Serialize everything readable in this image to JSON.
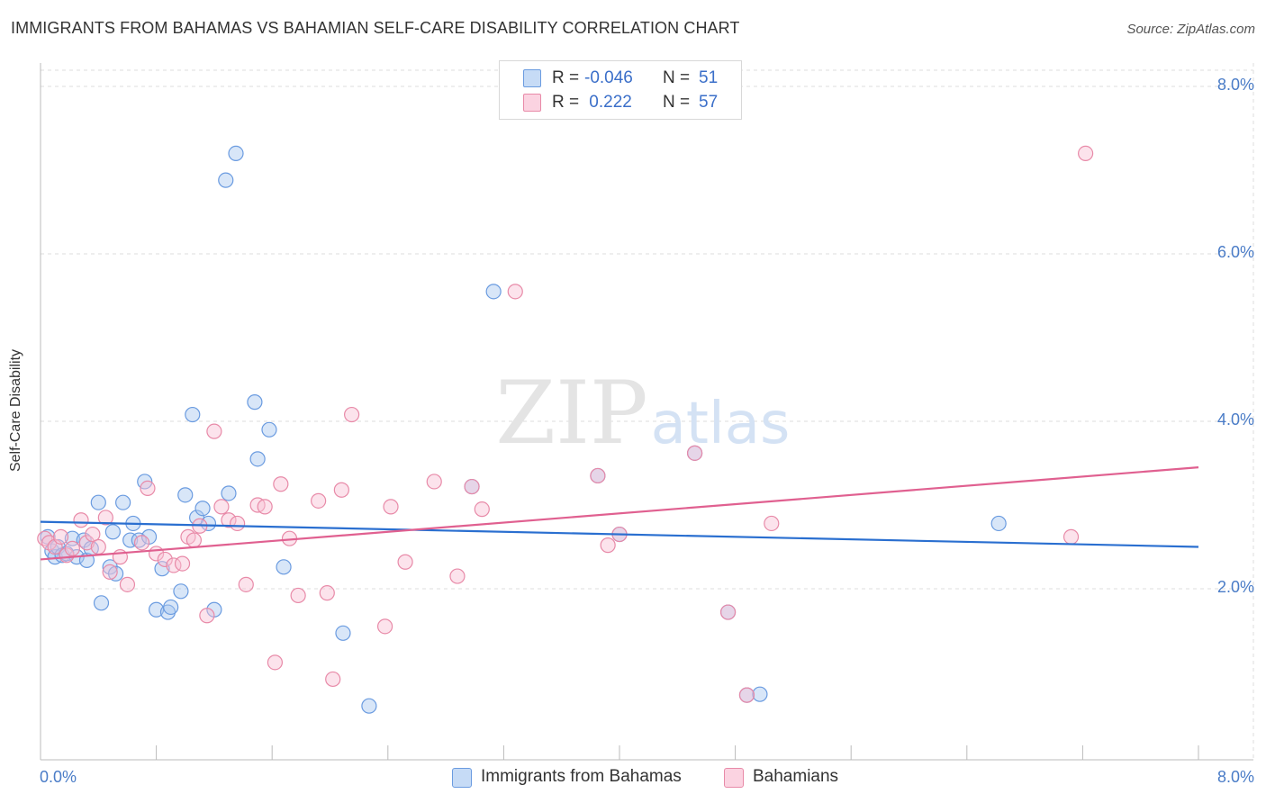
{
  "title": "IMMIGRANTS FROM BAHAMAS VS BAHAMIAN SELF-CARE DISABILITY CORRELATION CHART",
  "source": "Source: ZipAtlas.com",
  "watermark": {
    "zip": "ZIP",
    "atlas": "atlas"
  },
  "legend": {
    "rows": [
      {
        "r_label": "R =",
        "r_value": "-0.046",
        "n_label": "N =",
        "n_value": "51",
        "color": "#a8c8f0",
        "stroke": "#6a9be0"
      },
      {
        "r_label": "R =",
        "r_value": " 0.222",
        "n_label": "N =",
        "n_value": "57",
        "color": "#f8c0d4",
        "stroke": "#e88aa8"
      }
    ]
  },
  "bottom_legend": {
    "series1": "Immigrants from Bahamas",
    "series2": "Bahamians"
  },
  "chart_data": {
    "type": "scatter",
    "title": "IMMIGRANTS FROM BAHAMAS VS BAHAMIAN SELF-CARE DISABILITY CORRELATION CHART",
    "xlabel": "",
    "ylabel": "Self-Care Disability",
    "xlim": [
      0,
      8.4
    ],
    "ylim": [
      0,
      8.2
    ],
    "x_tick_labels": [
      "0.0%",
      "8.0%"
    ],
    "y_tick_labels": [
      "2.0%",
      "4.0%",
      "6.0%",
      "8.0%"
    ],
    "y_ticks": [
      2.0,
      4.0,
      6.0,
      8.0
    ],
    "grid": "horizontal dashed",
    "legend_position": "top-center",
    "series": [
      {
        "name": "Immigrants from Bahamas",
        "color": "#a8c8f0",
        "edge": "#6a9be0",
        "trend": {
          "x": [
            0.0,
            8.0
          ],
          "y": [
            2.8,
            2.5
          ],
          "color": "#2a6fd0"
        },
        "points": [
          [
            0.05,
            2.62
          ],
          [
            0.08,
            2.45
          ],
          [
            0.1,
            2.38
          ],
          [
            0.12,
            2.5
          ],
          [
            0.15,
            2.4
          ],
          [
            0.18,
            2.42
          ],
          [
            0.22,
            2.6
          ],
          [
            0.25,
            2.38
          ],
          [
            0.3,
            2.58
          ],
          [
            0.32,
            2.34
          ],
          [
            0.35,
            2.48
          ],
          [
            0.4,
            3.03
          ],
          [
            0.42,
            1.83
          ],
          [
            0.48,
            2.26
          ],
          [
            0.5,
            2.68
          ],
          [
            0.52,
            2.18
          ],
          [
            0.57,
            3.03
          ],
          [
            0.62,
            2.58
          ],
          [
            0.64,
            2.78
          ],
          [
            0.68,
            2.58
          ],
          [
            0.72,
            3.28
          ],
          [
            0.75,
            2.62
          ],
          [
            0.8,
            1.75
          ],
          [
            0.84,
            2.24
          ],
          [
            0.88,
            1.72
          ],
          [
            0.9,
            1.78
          ],
          [
            0.97,
            1.97
          ],
          [
            1.0,
            3.12
          ],
          [
            1.05,
            4.08
          ],
          [
            1.08,
            2.85
          ],
          [
            1.12,
            2.96
          ],
          [
            1.16,
            2.78
          ],
          [
            1.2,
            1.75
          ],
          [
            1.28,
            6.88
          ],
          [
            1.3,
            3.14
          ],
          [
            1.35,
            7.2
          ],
          [
            1.48,
            4.23
          ],
          [
            1.5,
            3.55
          ],
          [
            1.58,
            3.9
          ],
          [
            1.68,
            2.26
          ],
          [
            2.09,
            1.47
          ],
          [
            2.27,
            0.6
          ],
          [
            2.98,
            3.22
          ],
          [
            3.13,
            5.55
          ],
          [
            3.85,
            3.35
          ],
          [
            4.0,
            2.65
          ],
          [
            4.52,
            3.62
          ],
          [
            4.75,
            1.72
          ],
          [
            4.88,
            0.73
          ],
          [
            4.97,
            0.74
          ],
          [
            6.62,
            2.78
          ]
        ]
      },
      {
        "name": "Bahamians",
        "color": "#f8c0d4",
        "edge": "#e88aa8",
        "trend": {
          "x": [
            0.0,
            8.0
          ],
          "y": [
            2.35,
            3.45
          ],
          "color": "#e06090"
        },
        "points": [
          [
            0.03,
            2.6
          ],
          [
            0.06,
            2.55
          ],
          [
            0.1,
            2.5
          ],
          [
            0.14,
            2.62
          ],
          [
            0.18,
            2.4
          ],
          [
            0.22,
            2.48
          ],
          [
            0.28,
            2.82
          ],
          [
            0.32,
            2.55
          ],
          [
            0.36,
            2.65
          ],
          [
            0.4,
            2.5
          ],
          [
            0.45,
            2.85
          ],
          [
            0.48,
            2.2
          ],
          [
            0.55,
            2.38
          ],
          [
            0.6,
            2.05
          ],
          [
            0.7,
            2.55
          ],
          [
            0.74,
            3.2
          ],
          [
            0.8,
            2.42
          ],
          [
            0.86,
            2.35
          ],
          [
            0.92,
            2.28
          ],
          [
            0.98,
            2.3
          ],
          [
            1.02,
            2.62
          ],
          [
            1.06,
            2.58
          ],
          [
            1.1,
            2.75
          ],
          [
            1.15,
            1.68
          ],
          [
            1.2,
            3.88
          ],
          [
            1.25,
            2.98
          ],
          [
            1.3,
            2.82
          ],
          [
            1.36,
            2.78
          ],
          [
            1.42,
            2.05
          ],
          [
            1.5,
            3.0
          ],
          [
            1.55,
            2.98
          ],
          [
            1.62,
            1.12
          ],
          [
            1.66,
            3.25
          ],
          [
            1.72,
            2.6
          ],
          [
            1.78,
            1.92
          ],
          [
            1.92,
            3.05
          ],
          [
            1.98,
            1.95
          ],
          [
            2.02,
            0.92
          ],
          [
            2.08,
            3.18
          ],
          [
            2.15,
            4.08
          ],
          [
            2.38,
            1.55
          ],
          [
            2.42,
            2.98
          ],
          [
            2.52,
            2.32
          ],
          [
            2.72,
            3.28
          ],
          [
            2.88,
            2.15
          ],
          [
            2.98,
            3.22
          ],
          [
            3.05,
            2.95
          ],
          [
            3.28,
            5.55
          ],
          [
            3.85,
            3.35
          ],
          [
            3.92,
            2.52
          ],
          [
            4.0,
            2.65
          ],
          [
            4.52,
            3.62
          ],
          [
            4.75,
            1.72
          ],
          [
            4.88,
            0.73
          ],
          [
            5.05,
            2.78
          ],
          [
            7.12,
            2.62
          ],
          [
            7.22,
            7.2
          ]
        ]
      }
    ]
  }
}
